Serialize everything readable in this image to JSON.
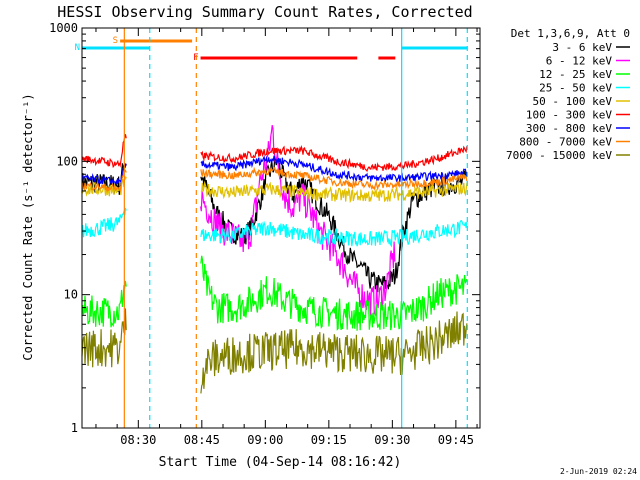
{
  "chart_data": {
    "type": "line",
    "title": "HESSI Observing Summary Count Rates, Corrected",
    "xlabel": "Start Time (04-Sep-14 08:16:42)",
    "ylabel": "Corrected Count Rate (s⁻¹ detector⁻¹)",
    "y_scale": "log",
    "ylim": [
      1,
      1000
    ],
    "xlim_minutes": [
      0,
      94
    ],
    "x_tick_labels": [
      "08:30",
      "08:45",
      "09:00",
      "09:15",
      "09:30",
      "09:45"
    ],
    "x_tick_minutes": [
      13.3,
      28.3,
      43.3,
      58.3,
      73.3,
      88.3
    ],
    "y_tick_labels": [
      "1",
      "10",
      "100",
      "1000"
    ],
    "y_tick_values": [
      1,
      10,
      100,
      1000
    ],
    "footer_date": "2-Jun-2019 02:24",
    "legend_title": "Det 1,3,6,9, Att 0",
    "flags": [
      {
        "label": "S",
        "color": "#ff8000",
        "t0": 9.0,
        "t1": 26.0
      },
      {
        "label": "N",
        "color": "#00e0ff",
        "t0": 0.0,
        "t1": 16.0
      },
      {
        "label": "F",
        "color": "#ff0000",
        "t0": 28.0,
        "t1": 65.0
      },
      {
        "label": "",
        "color": "#ff0000",
        "t0": 70.0,
        "t1": 74.0
      },
      {
        "label": "",
        "color": "#00e0ff",
        "t0": 75.5,
        "t1": 91.0
      }
    ],
    "markers": [
      {
        "t": 10.0,
        "color": "#ff8000",
        "style": "solid"
      },
      {
        "t": 16.0,
        "color": "#00e0ff",
        "style": "dashed"
      },
      {
        "t": 27.0,
        "color": "#ff8000",
        "style": "dashed"
      },
      {
        "t": 75.5,
        "color": "#00e0ff",
        "style": "solid"
      },
      {
        "t": 91.0,
        "color": "#00e0ff",
        "style": "dashed"
      }
    ],
    "gaps": [
      [
        10.5,
        28.0
      ]
    ],
    "series": [
      {
        "name": "3 - 6 keV",
        "color": "#000000",
        "x": [
          0,
          5,
          9,
          10,
          28,
          32,
          35,
          38,
          40,
          42,
          44,
          46,
          48,
          50,
          52,
          54,
          56,
          58,
          60,
          62,
          64,
          66,
          68,
          70,
          72,
          74,
          76,
          78,
          82,
          86,
          90,
          91
        ],
        "y": [
          70,
          68,
          66,
          100,
          80,
          40,
          30,
          27,
          32,
          50,
          80,
          100,
          70,
          55,
          75,
          60,
          48,
          40,
          30,
          22,
          18,
          16,
          13,
          12,
          12,
          14,
          30,
          50,
          62,
          66,
          70,
          75
        ]
      },
      {
        "name": "6 - 12 keV",
        "color": "#ff00ff",
        "x": [
          28,
          32,
          35,
          38,
          40,
          42,
          44,
          45,
          46,
          48,
          50,
          52,
          54,
          56,
          58,
          60,
          62,
          64,
          66,
          68,
          70,
          72,
          74
        ],
        "y": [
          55,
          33,
          28,
          25,
          30,
          70,
          110,
          180,
          100,
          55,
          45,
          55,
          42,
          30,
          25,
          20,
          16,
          12,
          10,
          9,
          9,
          12,
          22
        ]
      },
      {
        "name": "12 - 25 keV",
        "color": "#00ff00",
        "x": [
          0,
          5,
          9,
          10,
          28,
          30,
          32,
          36,
          40,
          44,
          48,
          52,
          56,
          60,
          64,
          68,
          72,
          76,
          80,
          84,
          88,
          91
        ],
        "y": [
          7.5,
          7.5,
          7.5,
          12,
          17,
          10,
          8,
          8,
          9,
          11,
          9,
          8,
          7.5,
          7.2,
          7,
          7,
          7,
          7,
          8,
          10,
          11,
          11
        ]
      },
      {
        "name": "25 - 50 keV",
        "color": "#00ffff",
        "x": [
          0,
          5,
          9,
          10,
          28,
          36,
          44,
          52,
          60,
          68,
          76,
          84,
          91
        ],
        "y": [
          30,
          32,
          35,
          45,
          28,
          28,
          32,
          28,
          27,
          26,
          27,
          30,
          32
        ]
      },
      {
        "name": "50 - 100 keV",
        "color": "#e0c000",
        "x": [
          0,
          5,
          9,
          10,
          28,
          36,
          44,
          52,
          60,
          68,
          76,
          84,
          91
        ],
        "y": [
          62,
          62,
          60,
          70,
          62,
          58,
          62,
          58,
          56,
          55,
          57,
          60,
          63
        ]
      },
      {
        "name": "100 - 300 keV",
        "color": "#ff0000",
        "x": [
          0,
          5,
          9,
          10,
          28,
          36,
          44,
          52,
          60,
          68,
          76,
          84,
          91
        ],
        "y": [
          105,
          100,
          95,
          150,
          110,
          105,
          120,
          120,
          100,
          90,
          92,
          105,
          125
        ]
      },
      {
        "name": "300 - 800 keV",
        "color": "#0000ff",
        "x": [
          0,
          5,
          9,
          10,
          28,
          36,
          44,
          52,
          60,
          68,
          76,
          84,
          91
        ],
        "y": [
          75,
          72,
          70,
          90,
          95,
          90,
          105,
          95,
          80,
          75,
          75,
          78,
          82
        ]
      },
      {
        "name": "800 - 7000 keV",
        "color": "#ff8000",
        "x": [
          0,
          5,
          9,
          10,
          28,
          36,
          44,
          52,
          60,
          68,
          76,
          84,
          91
        ],
        "y": [
          66,
          64,
          62,
          85,
          82,
          78,
          85,
          78,
          70,
          66,
          67,
          70,
          76
        ]
      },
      {
        "name": "7000 - 15000 keV",
        "color": "#808000",
        "x": [
          0,
          5,
          9,
          10,
          28,
          30,
          34,
          40,
          46,
          52,
          58,
          64,
          70,
          76,
          82,
          88,
          91
        ],
        "y": [
          4,
          4,
          4,
          6,
          2.5,
          3.2,
          3.5,
          3.7,
          3.8,
          4.0,
          3.8,
          3.6,
          3.5,
          3.5,
          4.2,
          5.2,
          6
        ]
      }
    ]
  }
}
